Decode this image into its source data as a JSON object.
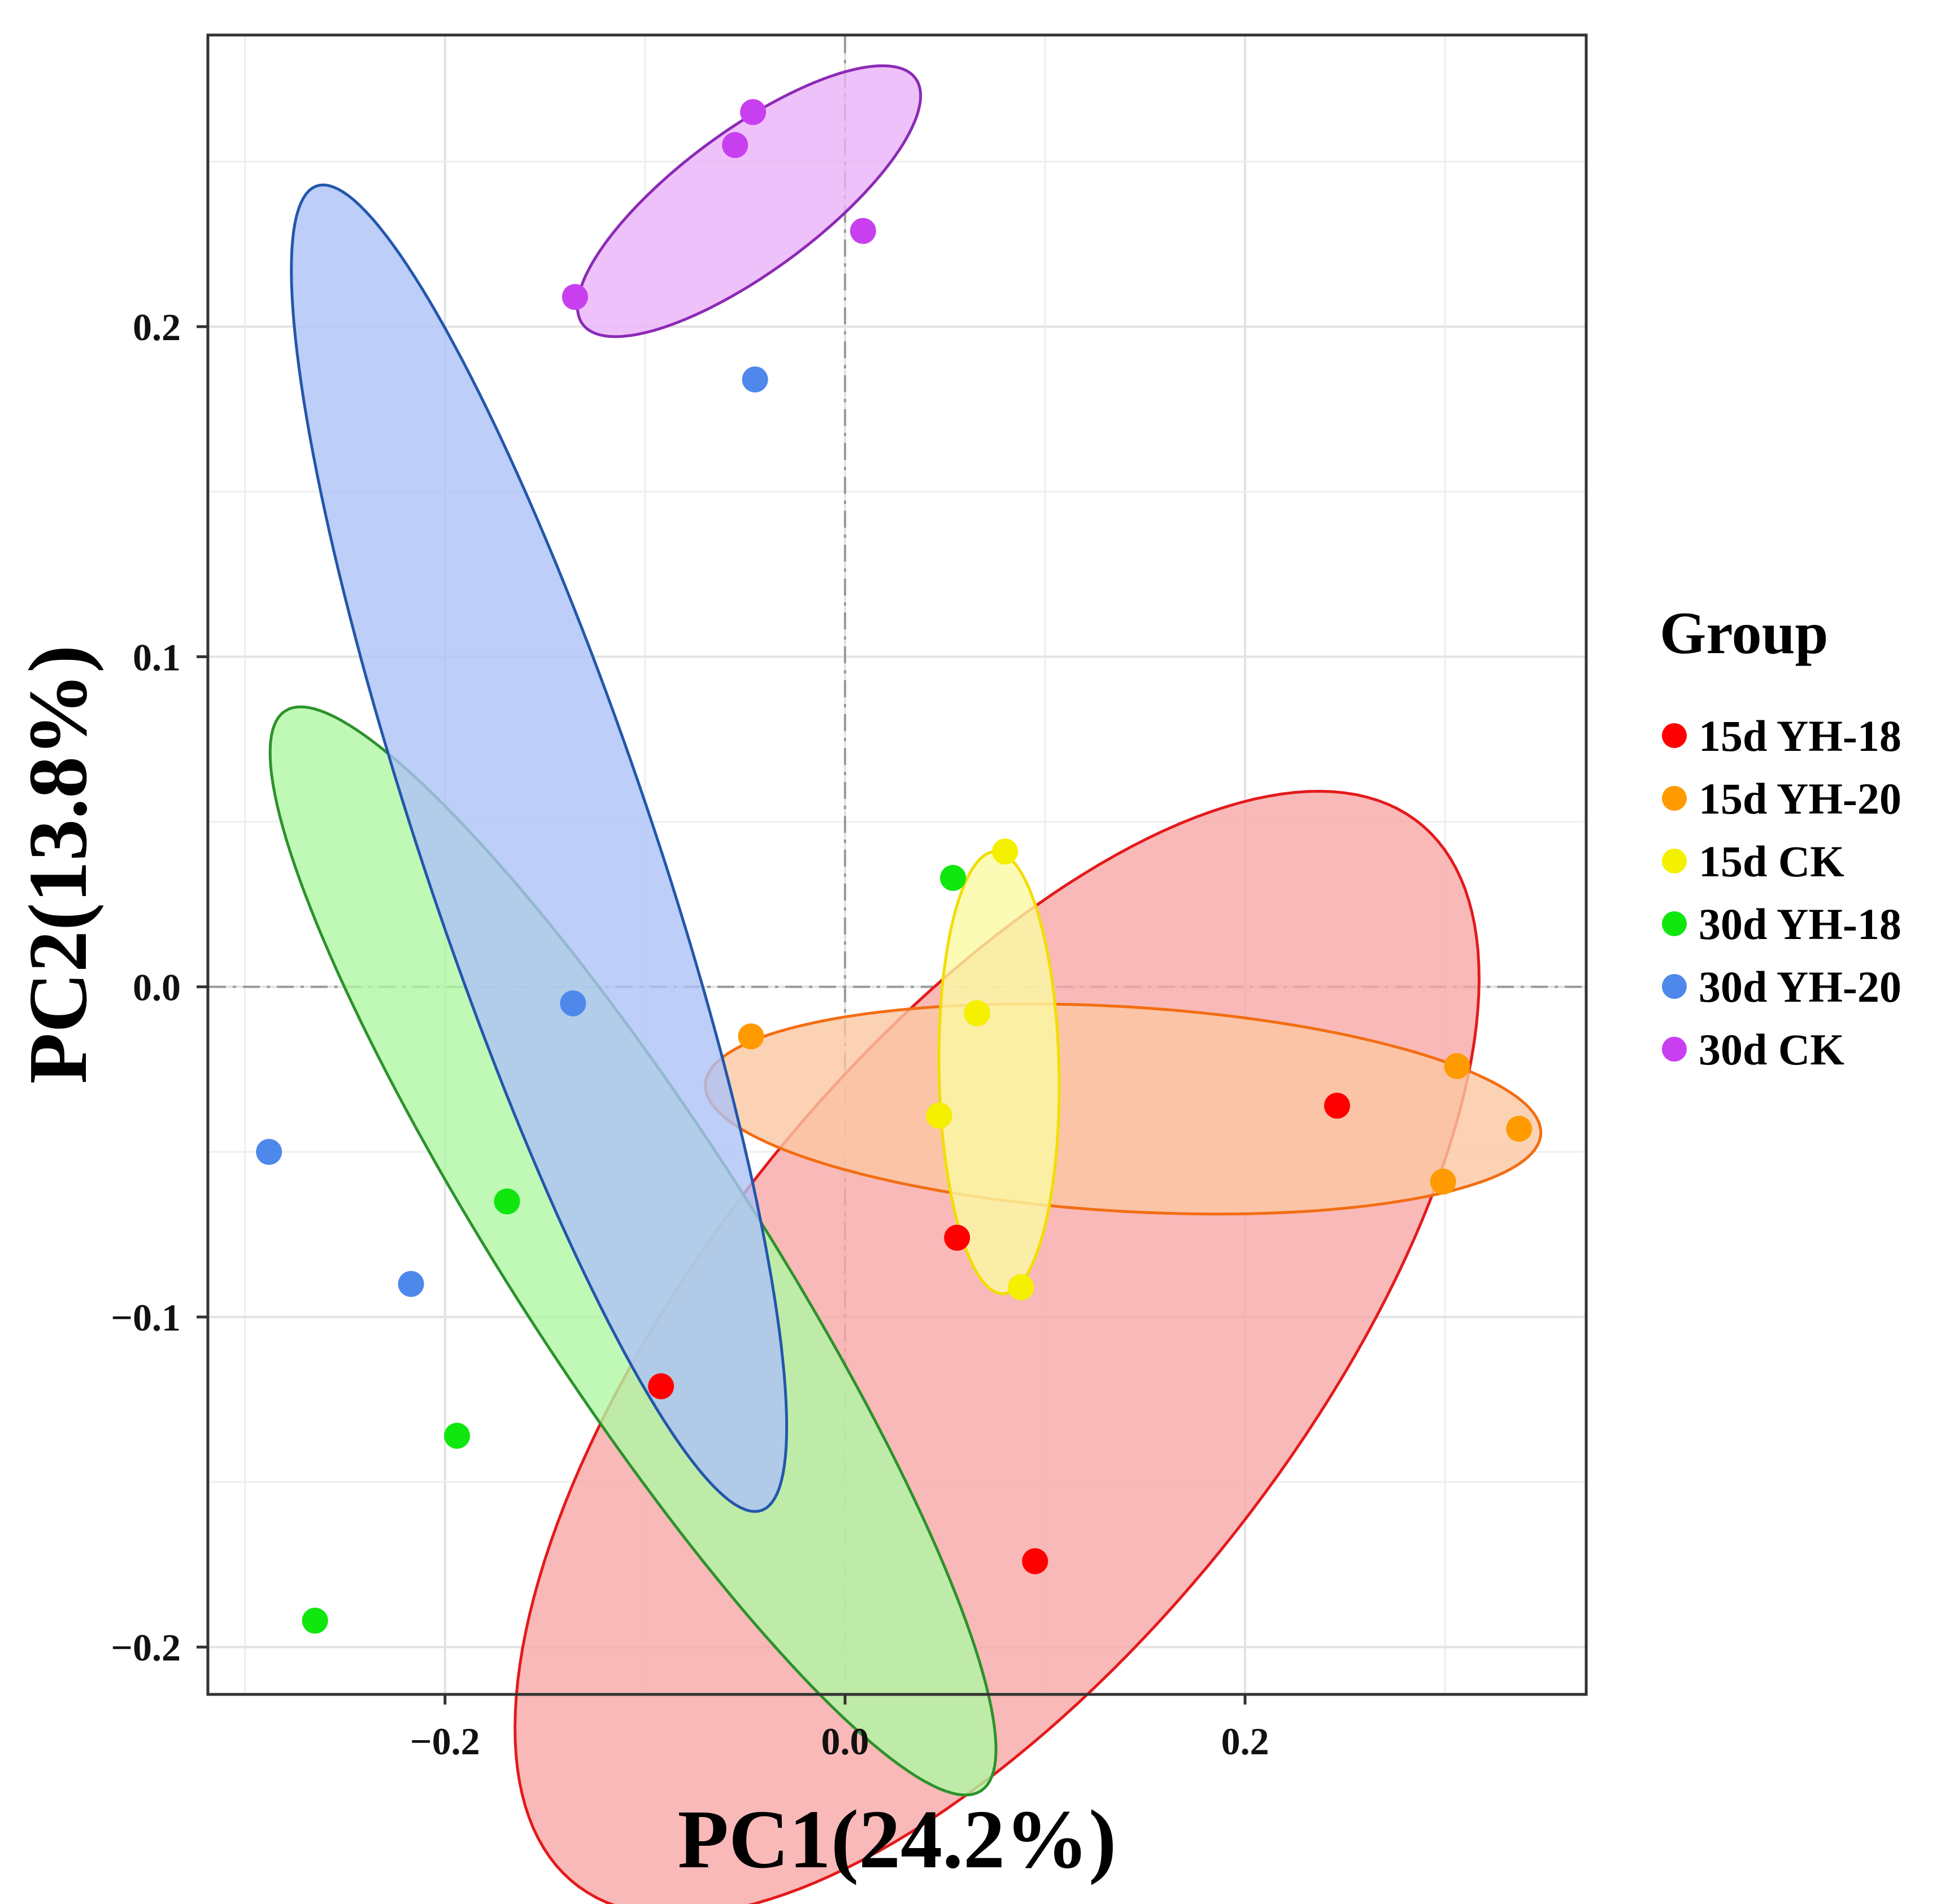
{
  "chart_data": {
    "type": "scatter",
    "title": "",
    "xlabel": "PC1(24.2%)",
    "ylabel": "PC2(13.8%)",
    "xlim": [
      -0.318,
      0.37
    ],
    "ylim": [
      -0.214,
      0.288
    ],
    "xticks": [
      -0.2,
      0.0,
      0.2
    ],
    "xtick_labels": [
      "−0.2",
      "0.0",
      "0.2"
    ],
    "yticks": [
      -0.2,
      -0.1,
      0.0,
      0.1,
      0.2
    ],
    "ytick_labels": [
      "−0.2",
      "−0.1",
      "0.0",
      "0.1",
      "0.2"
    ],
    "grid": true,
    "reference_lines": {
      "x": 0,
      "y": 0
    },
    "legend": {
      "title": "Group",
      "position": "right"
    },
    "series": [
      {
        "name": "15d YH-18",
        "color": "#ff0000",
        "fill": "#f8a8a6",
        "stroke": "#e41a1c",
        "points": [
          [
            -0.092,
            -0.121
          ],
          [
            0.056,
            -0.076
          ],
          [
            0.095,
            -0.174
          ],
          [
            0.246,
            -0.036
          ]
        ],
        "ellipse": {
          "cx": 0.076,
          "cy": -0.111,
          "rx": 0.273,
          "ry": 0.112,
          "angle": 31
        }
      },
      {
        "name": "15d YH-20",
        "color": "#ff9b00",
        "fill": "#fbc7a3",
        "stroke": "#f36d12",
        "points": [
          [
            -0.047,
            -0.015
          ],
          [
            0.047,
            -0.039
          ],
          [
            0.066,
            -0.008
          ],
          [
            0.088,
            -0.091
          ],
          [
            0.299,
            -0.059
          ],
          [
            0.306,
            -0.024
          ],
          [
            0.337,
            -0.043
          ]
        ],
        "ellipse": {
          "cx": 0.139,
          "cy": -0.037,
          "rx": 0.209,
          "ry": 0.031,
          "angle": -2
        }
      },
      {
        "name": "15d CK",
        "color": "#f5f000",
        "fill": "#fafaa3",
        "stroke": "#f2dd00",
        "points": [
          [
            0.08,
            0.041
          ],
          [
            0.066,
            -0.008
          ],
          [
            0.047,
            -0.039
          ],
          [
            0.088,
            -0.091
          ]
        ],
        "ellipse": {
          "cx": 0.077,
          "cy": -0.026,
          "rx": 0.03,
          "ry": 0.067,
          "angle": 2
        }
      },
      {
        "name": "30d YH-18",
        "color": "#10e70f",
        "fill": "#b0f7a4",
        "stroke": "#2d922c",
        "points": [
          [
            0.054,
            0.033
          ],
          [
            -0.169,
            -0.065
          ],
          [
            -0.194,
            -0.136
          ],
          [
            -0.265,
            -0.192
          ]
        ],
        "ellipse": {
          "cx": -0.106,
          "cy": -0.08,
          "rx": 0.24,
          "ry": 0.05,
          "angle": -42
        }
      },
      {
        "name": "30d YH-20",
        "color": "#4f88eb",
        "fill": "#adc2f8",
        "stroke": "#2357aa",
        "points": [
          [
            -0.045,
            0.184
          ],
          [
            -0.136,
            -0.005
          ],
          [
            -0.288,
            -0.05
          ],
          [
            -0.217,
            -0.09
          ]
        ],
        "ellipse": {
          "cx": -0.153,
          "cy": 0.042,
          "rx": 0.23,
          "ry": 0.053,
          "angle": -60
        }
      },
      {
        "name": "30d CK",
        "color": "#c83ff0",
        "fill": "#ebb2f9",
        "stroke": "#8c2ab5",
        "points": [
          [
            -0.046,
            0.265
          ],
          [
            -0.055,
            0.255
          ],
          [
            0.009,
            0.229
          ],
          [
            -0.135,
            0.209
          ]
        ],
        "ellipse": {
          "cx": -0.048,
          "cy": 0.238,
          "rx": 0.092,
          "ry": 0.024,
          "angle": 22
        }
      }
    ]
  }
}
